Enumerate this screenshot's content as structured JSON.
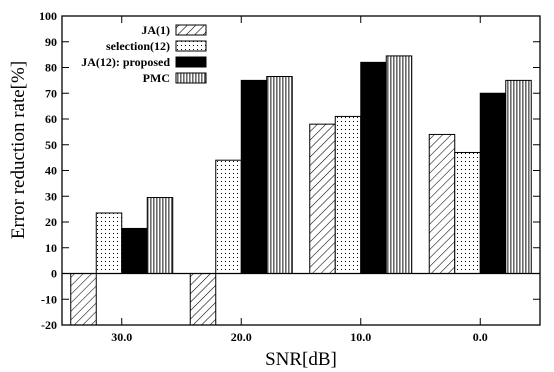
{
  "chart_data": {
    "type": "bar",
    "xlabel": "SNR[dB]",
    "ylabel": "Error reduction rate[%]",
    "ylim": [
      -20,
      100
    ],
    "yticks": [
      -20,
      -10,
      0,
      10,
      20,
      30,
      40,
      50,
      60,
      70,
      80,
      90,
      100
    ],
    "categories": [
      "30.0",
      "20.0",
      "10.0",
      "0.0"
    ],
    "legend_position": "top-left",
    "grid": false,
    "series": [
      {
        "name": "JA(1)",
        "pattern": "diagonal-hatch",
        "values": [
          -20,
          -20,
          58,
          54
        ]
      },
      {
        "name": "selection(12)",
        "pattern": "dots",
        "values": [
          23.5,
          44,
          61,
          47
        ]
      },
      {
        "name": "JA(12): proposed",
        "pattern": "solid-black",
        "values": [
          17.5,
          75,
          82,
          70
        ]
      },
      {
        "name": "PMC",
        "pattern": "vertical-stripes",
        "values": [
          29.5,
          76.5,
          84.5,
          75
        ]
      }
    ]
  }
}
